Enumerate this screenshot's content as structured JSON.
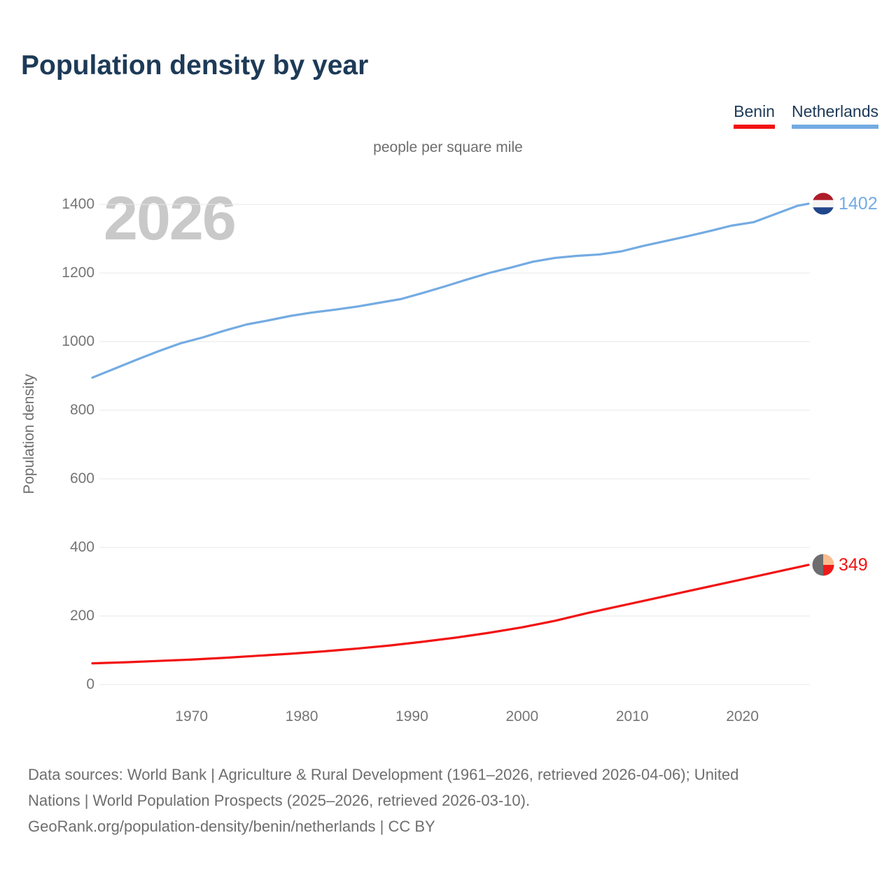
{
  "header": {
    "title": "Population density by year",
    "subtitle": "people per square mile"
  },
  "watermark": {
    "text": "2026"
  },
  "legend": {
    "items": [
      {
        "label": "Benin",
        "color": "#f21212"
      },
      {
        "label": "Netherlands",
        "color": "#74abe2"
      }
    ]
  },
  "chart_data": {
    "type": "line",
    "title": "Population density by year",
    "unit_label": "people per square mile",
    "xlabel": "",
    "ylabel": "Population density",
    "xlim": [
      1961,
      2026
    ],
    "ylim": [
      0,
      1400
    ],
    "yticks": [
      0,
      200,
      400,
      600,
      800,
      1000,
      1200,
      1400
    ],
    "xticks": [
      1970,
      1980,
      1990,
      2000,
      2010,
      2020
    ],
    "grid": "horizontal",
    "gridline_color": "#e7e7e7",
    "legend_position": "top-right",
    "series": [
      {
        "name": "Netherlands",
        "color": "#74abe2",
        "end_value": 1402,
        "end_value_label": "1402",
        "x": [
          1961,
          1963,
          1965,
          1967,
          1969,
          1971,
          1973,
          1975,
          1977,
          1979,
          1981,
          1983,
          1985,
          1987,
          1989,
          1991,
          1993,
          1995,
          1997,
          1999,
          2001,
          2003,
          2005,
          2007,
          2009,
          2011,
          2013,
          2015,
          2017,
          2019,
          2021,
          2023,
          2025,
          2026
        ],
        "y": [
          895,
          921,
          947,
          972,
          995,
          1012,
          1032,
          1050,
          1062,
          1075,
          1085,
          1093,
          1102,
          1113,
          1124,
          1142,
          1161,
          1181,
          1200,
          1216,
          1233,
          1244,
          1250,
          1254,
          1263,
          1279,
          1293,
          1307,
          1322,
          1338,
          1348,
          1372,
          1396,
          1402
        ]
      },
      {
        "name": "Benin",
        "color": "#f21212",
        "end_value": 349,
        "end_value_label": "349",
        "x": [
          1961,
          1964,
          1967,
          1970,
          1973,
          1976,
          1979,
          1982,
          1985,
          1988,
          1991,
          1994,
          1997,
          2000,
          2003,
          2006,
          2009,
          2012,
          2015,
          2018,
          2021,
          2024,
          2026
        ],
        "y": [
          62,
          65,
          69,
          73,
          78,
          84,
          90,
          97,
          105,
          114,
          125,
          137,
          151,
          167,
          186,
          209,
          230,
          251,
          272,
          293,
          314,
          335,
          349
        ]
      }
    ],
    "end_markers": [
      {
        "series": "Netherlands",
        "icon": "netherlands-flag-icon",
        "shape": "circle",
        "flag_colors": {
          "top": "#ae1c28",
          "middle": "#f4f4f4",
          "bottom": "#21468b"
        },
        "label_color": "#74abe2"
      },
      {
        "series": "Benin",
        "icon": "benin-flag-icon",
        "shape": "circle",
        "flag_colors": {
          "left": "#6e6e6e",
          "top_right": "#f9bd92",
          "bottom_right": "#ee1a1a"
        },
        "label_color": "#f21212"
      }
    ]
  },
  "footer": {
    "lines": [
      "Data sources: World Bank | Agriculture & Rural Development (1961–2026, retrieved 2026-04-06); United",
      "Nations | World Population Prospects (2025–2026, retrieved 2026-03-10).",
      "GeoRank.org/population-density/benin/netherlands | CC BY"
    ]
  }
}
